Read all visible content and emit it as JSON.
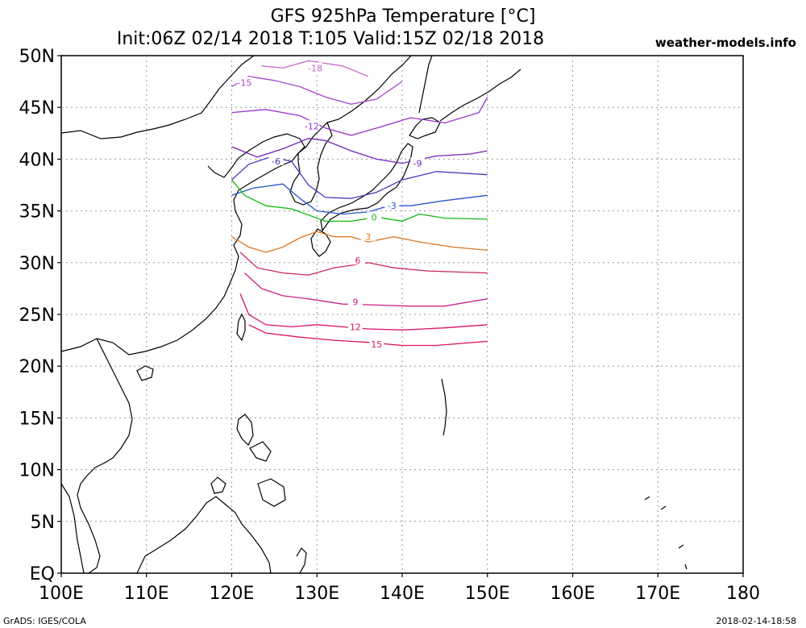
{
  "header": {
    "title_line1": "GFS 925hPa Temperature [°C]",
    "title_line2": "Init:06Z 02/14 2018 T:105 Valid:15Z 02/18 2018",
    "site": "weather-models.info"
  },
  "footer": {
    "left": "GrADS: IGES/COLA",
    "right": "2018-02-14-18:58"
  },
  "axes": {
    "x_ticks": [
      "100E",
      "110E",
      "120E",
      "130E",
      "140E",
      "150E",
      "160E",
      "170E",
      "180"
    ],
    "x_values": [
      100,
      110,
      120,
      130,
      140,
      150,
      160,
      170,
      180
    ],
    "y_ticks": [
      "EQ",
      "5N",
      "10N",
      "15N",
      "20N",
      "25N",
      "30N",
      "35N",
      "40N",
      "45N",
      "50N"
    ],
    "y_values": [
      0,
      5,
      10,
      15,
      20,
      25,
      30,
      35,
      40,
      45,
      50
    ],
    "lon_range": [
      100,
      180
    ],
    "lat_range": [
      0,
      50
    ],
    "grid": true
  },
  "contours": [
    {
      "label": "-18",
      "color": "#cc66cc"
    },
    {
      "label": "-15",
      "color": "#aa44cc"
    },
    {
      "label": "-12",
      "color": "#9933cc"
    },
    {
      "label": "-9",
      "color": "#7722bb"
    },
    {
      "label": "-6",
      "color": "#5533bb"
    },
    {
      "label": "-3",
      "color": "#2255cc"
    },
    {
      "label": "0",
      "color": "#11bb11"
    },
    {
      "label": "3",
      "color": "#dd7722"
    },
    {
      "label": "6",
      "color": "#cc2266"
    },
    {
      "label": "9",
      "color": "#cc2288"
    },
    {
      "label": "12",
      "color": "#dd1166"
    },
    {
      "label": "15",
      "color": "#dd1155"
    }
  ]
}
